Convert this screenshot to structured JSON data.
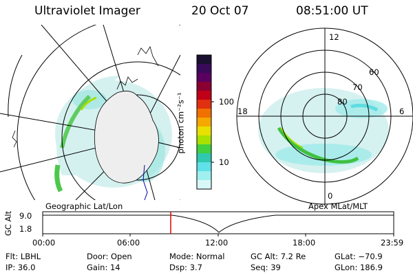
{
  "header": {
    "title": "Ultraviolet Imager",
    "date": "20 Oct 07",
    "time": "08:51:00 UT"
  },
  "colorbar": {
    "unit_label": "photon cm⁻²s⁻¹",
    "ticks": [
      "100",
      "10"
    ],
    "colors": [
      "#1a1030",
      "#3a0a5a",
      "#5a0060",
      "#8a0030",
      "#c00018",
      "#e03010",
      "#f07000",
      "#f4a800",
      "#e8e000",
      "#a8e000",
      "#40d040",
      "#30c8b0",
      "#60e0e8",
      "#a0f0f0",
      "#d8f8f8"
    ]
  },
  "left_panel": {
    "caption": "Geographic Lat/Lon"
  },
  "right_panel": {
    "caption": "Apex MLat/MLT",
    "mlt_labels": {
      "top": "12",
      "left": "18",
      "right": "6",
      "bottom": "0"
    },
    "lat_labels": [
      "60",
      "70",
      "80"
    ]
  },
  "altitude_plot": {
    "ylabel": "GC Alt",
    "yticks": [
      "9.0",
      "1.8"
    ],
    "xticks": [
      "00:00",
      "06:00",
      "12:00",
      "18:00",
      "23:59"
    ],
    "current_time_marker": "08:51"
  },
  "footer": {
    "row1": [
      {
        "label": "Flt:",
        "value": "LBHL"
      },
      {
        "label": "Door:",
        "value": "Open"
      },
      {
        "label": "Mode:",
        "value": "Normal"
      },
      {
        "label": "GC Alt:",
        "value": "7.2 Re"
      },
      {
        "label": "GLat:",
        "value": "−70.9"
      }
    ],
    "row2": [
      {
        "label": "IP:",
        "value": "36.0"
      },
      {
        "label": "Gain:",
        "value": "14"
      },
      {
        "label": "Dsp:",
        "value": "3.7"
      },
      {
        "label": "Seq:",
        "value": "39"
      },
      {
        "label": "GLon:",
        "value": "186.9"
      }
    ]
  }
}
